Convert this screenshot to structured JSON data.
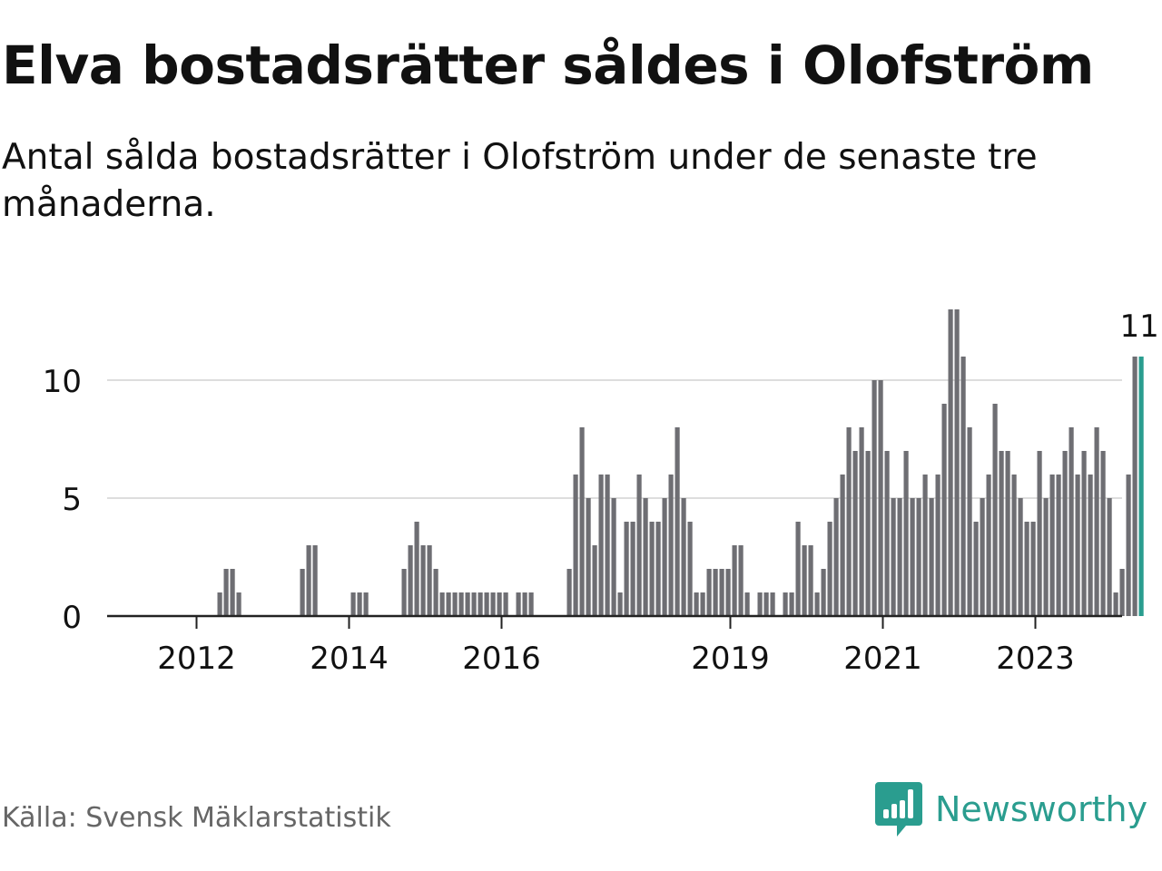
{
  "title": "Elva bostadsrätter såldes i Olofström",
  "subtitle": "Antal sålda bostadsrätter i Olofström under de senaste tre månaderna.",
  "source": "Källa: Svensk Mäklarstatistik",
  "brand": {
    "name": "Newsworthy",
    "icon": "newsworthy-logo-icon"
  },
  "colors": {
    "bar": "#6e6e73",
    "highlight": "#2a9d8f",
    "grid": "#dddddd",
    "axis": "#222222",
    "text": "#111111",
    "source": "#666666"
  },
  "chart_data": {
    "type": "bar",
    "x_unit": "month",
    "x_start": "2011-07",
    "x_end": "2024-05",
    "series": [
      {
        "values": [
          0,
          0,
          0,
          0,
          0,
          0,
          0,
          0,
          0,
          1,
          2,
          2,
          1,
          0,
          0,
          0,
          0,
          0,
          0,
          0,
          0,
          0,
          2,
          3,
          3,
          0,
          0,
          0,
          0,
          0,
          1,
          1,
          1,
          0,
          0,
          0,
          0,
          0,
          2,
          3,
          4,
          3,
          3,
          2,
          1,
          1,
          1,
          1,
          1,
          1,
          1,
          1,
          1,
          1,
          1,
          0,
          1,
          1,
          1,
          0,
          0,
          0,
          0,
          0,
          2,
          6,
          8,
          5,
          3,
          6,
          6,
          5,
          1,
          4,
          4,
          6,
          5,
          4,
          4,
          5,
          6,
          8,
          5,
          4,
          1,
          1,
          2,
          2,
          2,
          2,
          3,
          3,
          1,
          0,
          1,
          1,
          1,
          0,
          1,
          1,
          4,
          3,
          3,
          1,
          2,
          4,
          5,
          6,
          8,
          7,
          8,
          7,
          10,
          10,
          7,
          5,
          5,
          7,
          5,
          5,
          6,
          5,
          6,
          9,
          13,
          13,
          11,
          8,
          4,
          5,
          6,
          9,
          7,
          7,
          6,
          5,
          4,
          4,
          7,
          5,
          6,
          6,
          7,
          8,
          6,
          7,
          6,
          8,
          7,
          5,
          1,
          2,
          6,
          11,
          11
        ]
      }
    ],
    "highlight_index": 154,
    "highlight_label": "11",
    "x_ticks": [
      "2012",
      "2014",
      "2016",
      "2019",
      "2021",
      "2023"
    ],
    "x_tick_positions": [
      "2012-01",
      "2014-01",
      "2016-01",
      "2019-01",
      "2021-01",
      "2023-01"
    ],
    "y_ticks": [
      "0",
      "5",
      "10"
    ],
    "ylim": [
      0,
      13
    ],
    "grid": true,
    "legend": "none"
  }
}
